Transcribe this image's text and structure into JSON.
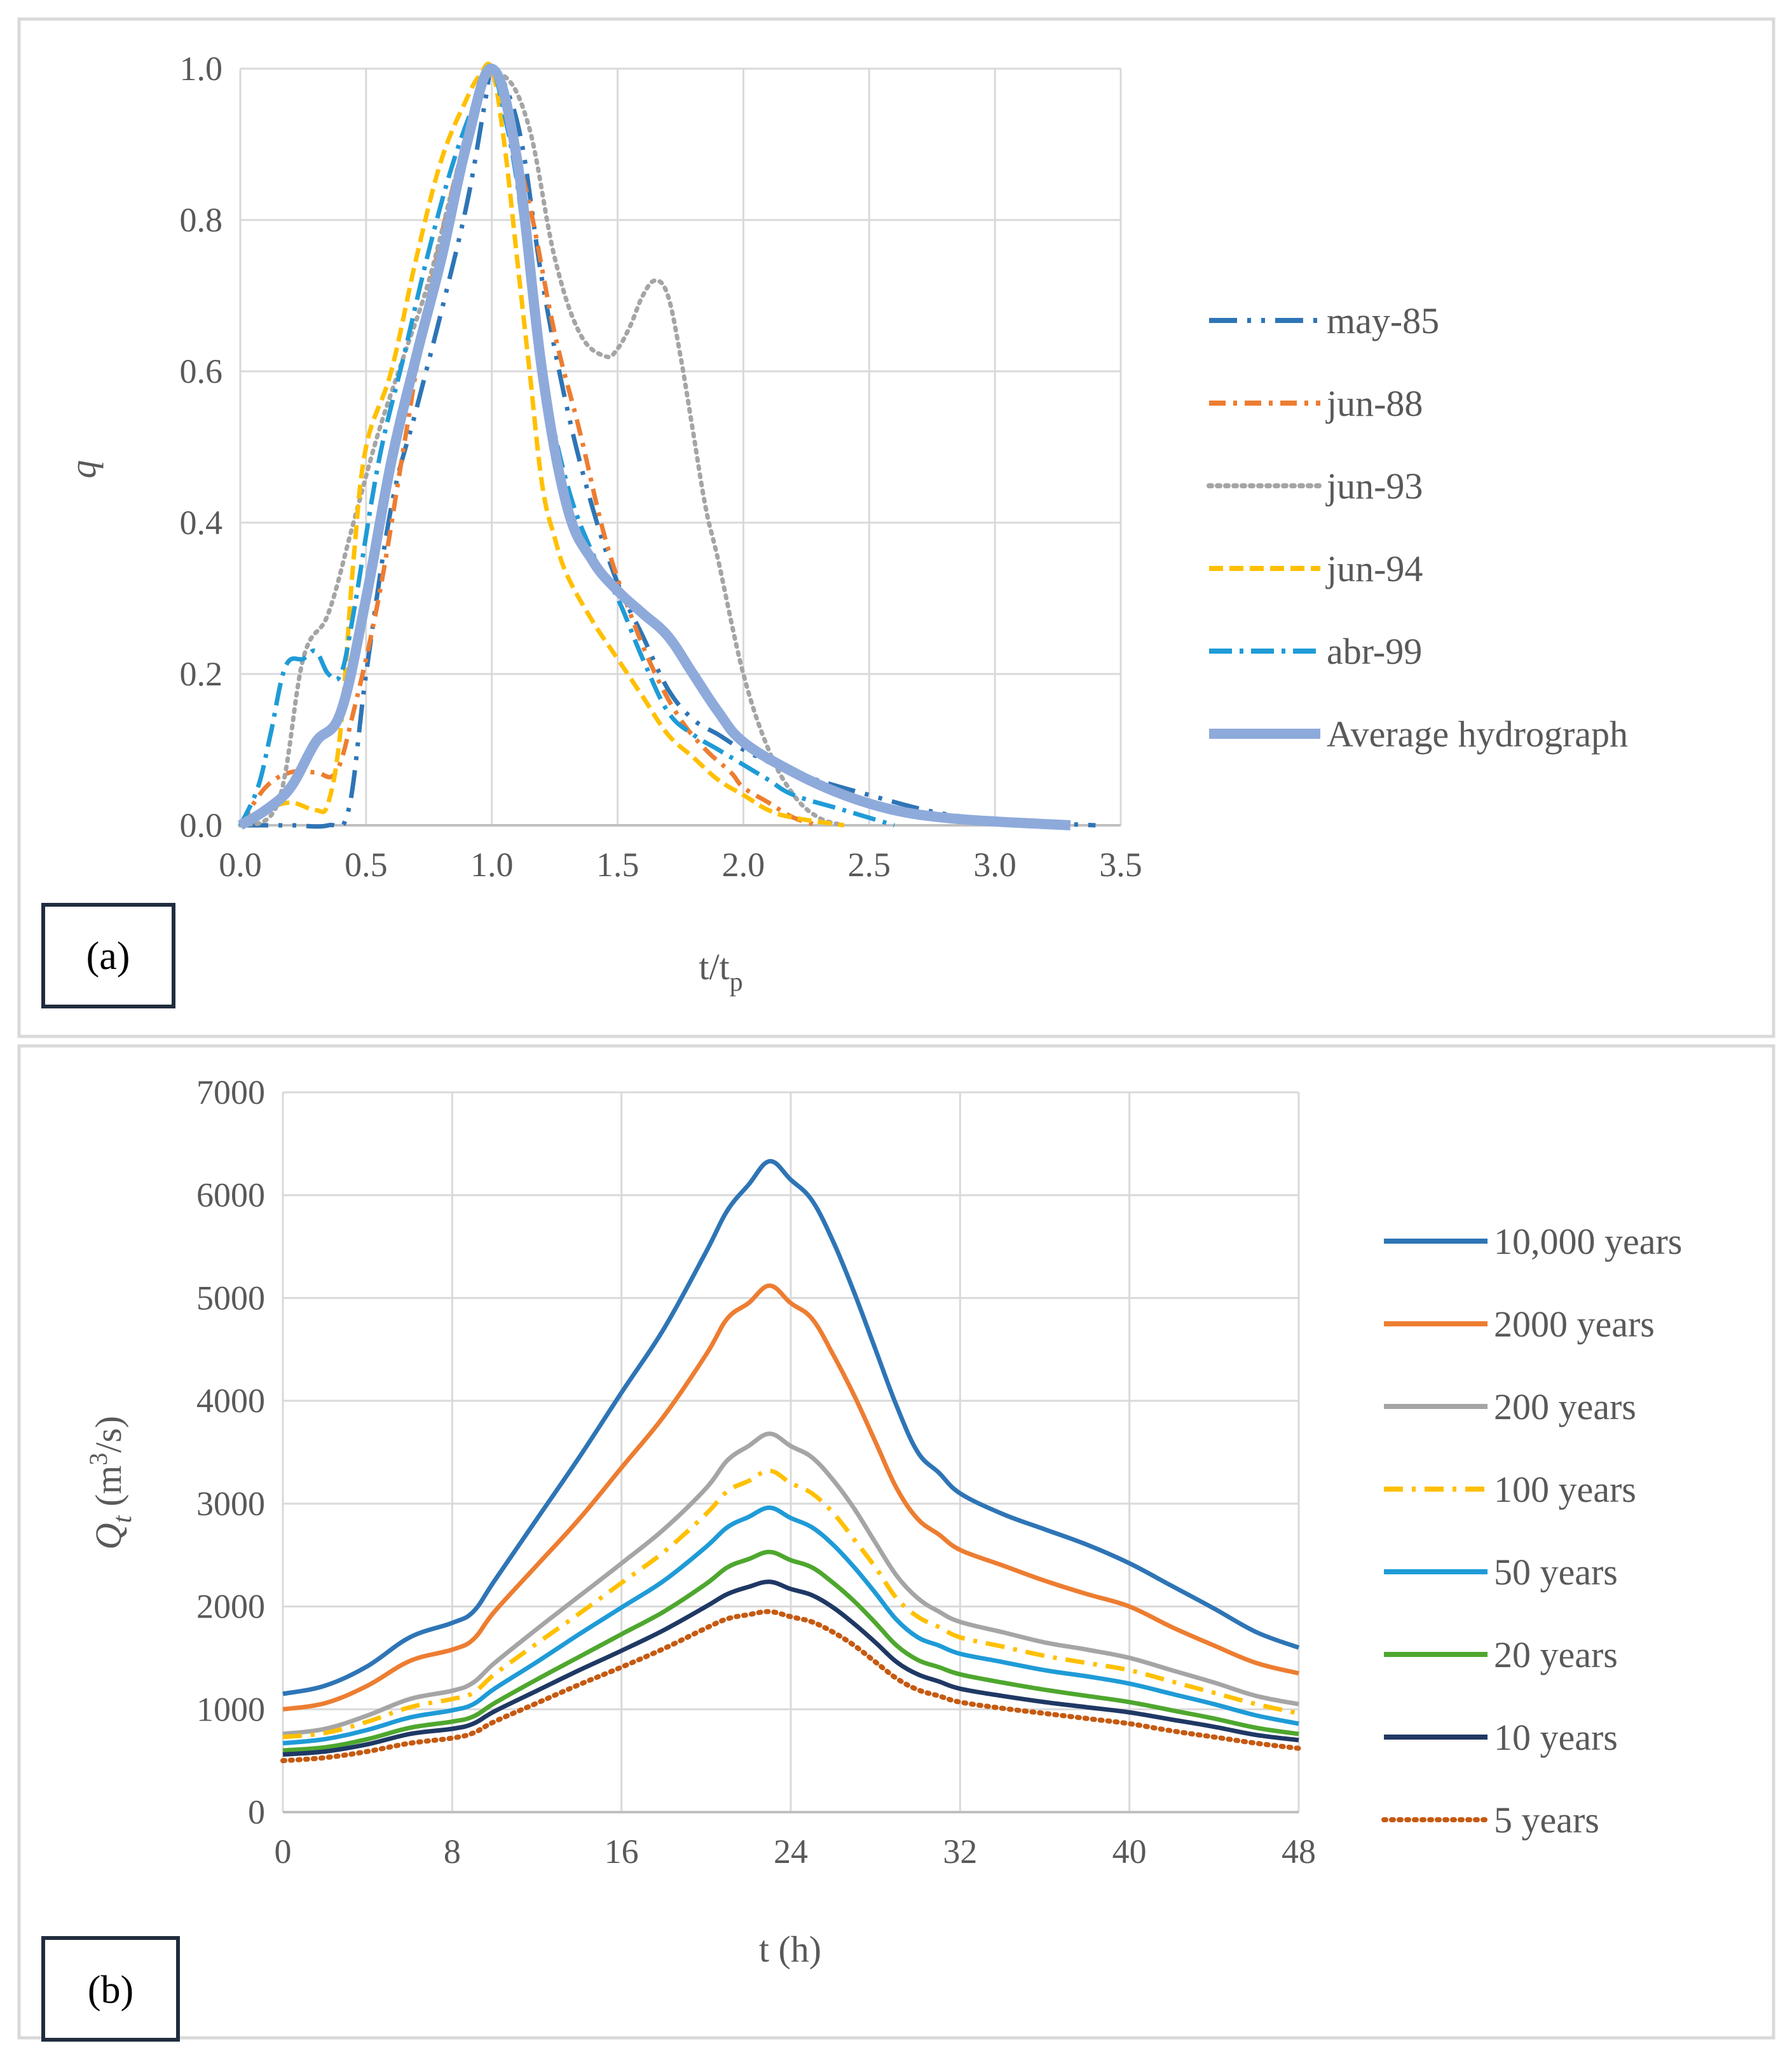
{
  "figure": {
    "panels": [
      "(a)",
      "(b)"
    ]
  },
  "chart_data": [
    {
      "type": "line",
      "panel_label": "(a)",
      "xlabel": "t/t",
      "xlabel_sub": "p",
      "ylabel": "q",
      "xlim": [
        0,
        3.5
      ],
      "ylim": [
        0,
        1
      ],
      "xticks": [
        "0.0",
        "0.5",
        "1.0",
        "1.5",
        "2.0",
        "2.5",
        "3.0",
        "3.5"
      ],
      "yticks": [
        "0.0",
        "0.2",
        "0.4",
        "0.6",
        "0.8",
        "1.0"
      ],
      "grid": true,
      "legend_position": "right",
      "series": [
        {
          "name": "may-85",
          "color": "#2E75B6",
          "dash": "44,16,6,16,6,16",
          "width": 7,
          "x": [
            0,
            0.2,
            0.35,
            0.43,
            0.5,
            0.6,
            0.7,
            0.8,
            0.9,
            0.97,
            1.0,
            1.05,
            1.12,
            1.2,
            1.3,
            1.4,
            1.5,
            1.6,
            1.7,
            1.8,
            1.9,
            2.0,
            2.2,
            2.5,
            2.8,
            3.1,
            3.4
          ],
          "y": [
            0,
            0,
            0,
            0.02,
            0.2,
            0.42,
            0.55,
            0.68,
            0.82,
            0.95,
            1.0,
            0.98,
            0.9,
            0.72,
            0.55,
            0.42,
            0.32,
            0.25,
            0.18,
            0.14,
            0.12,
            0.1,
            0.07,
            0.04,
            0.015,
            0.005,
            0
          ]
        },
        {
          "name": "jun-88",
          "color": "#ED7D31",
          "dash": "26,12,6,12",
          "width": 7,
          "x": [
            0,
            0.1,
            0.2,
            0.3,
            0.38,
            0.45,
            0.55,
            0.65,
            0.75,
            0.85,
            0.95,
            1.0,
            1.05,
            1.15,
            1.25,
            1.35,
            1.45,
            1.55,
            1.65,
            1.75,
            1.85,
            1.95,
            2.0,
            2.1,
            2.2,
            2.3
          ],
          "y": [
            0,
            0.05,
            0.07,
            0.07,
            0.07,
            0.15,
            0.3,
            0.5,
            0.7,
            0.85,
            0.97,
            1.0,
            0.95,
            0.82,
            0.65,
            0.52,
            0.38,
            0.28,
            0.2,
            0.14,
            0.1,
            0.07,
            0.05,
            0.03,
            0.01,
            0
          ]
        },
        {
          "name": "jun-93",
          "color": "#A5A5A5",
          "dash": "4,9",
          "width": 7,
          "x": [
            0,
            0.15,
            0.25,
            0.35,
            0.45,
            0.55,
            0.65,
            0.75,
            0.85,
            0.95,
            1.05,
            1.15,
            1.25,
            1.35,
            1.45,
            1.5,
            1.55,
            1.6,
            1.65,
            1.7,
            1.75,
            1.8,
            1.85,
            1.9,
            2.0,
            2.1,
            2.2,
            2.3,
            2.4
          ],
          "y": [
            0,
            0.03,
            0.22,
            0.28,
            0.4,
            0.52,
            0.62,
            0.72,
            0.85,
            0.97,
            0.99,
            0.92,
            0.75,
            0.65,
            0.62,
            0.63,
            0.66,
            0.7,
            0.72,
            0.7,
            0.62,
            0.52,
            0.42,
            0.35,
            0.2,
            0.1,
            0.04,
            0.01,
            0
          ]
        },
        {
          "name": "jun-94",
          "color": "#FFC000",
          "dash": "22,10",
          "width": 7,
          "x": [
            0,
            0.1,
            0.2,
            0.3,
            0.35,
            0.4,
            0.45,
            0.5,
            0.6,
            0.7,
            0.8,
            0.9,
            0.95,
            1.0,
            1.05,
            1.1,
            1.15,
            1.2,
            1.25,
            1.3,
            1.4,
            1.5,
            1.6,
            1.7,
            1.8,
            1.9,
            2.0,
            2.1,
            2.2,
            2.4
          ],
          "y": [
            0,
            0.02,
            0.03,
            0.02,
            0.03,
            0.13,
            0.35,
            0.5,
            0.6,
            0.75,
            0.88,
            0.96,
            0.99,
            1.0,
            0.9,
            0.75,
            0.6,
            0.45,
            0.38,
            0.33,
            0.27,
            0.22,
            0.17,
            0.12,
            0.09,
            0.06,
            0.04,
            0.02,
            0.01,
            0
          ]
        },
        {
          "name": "abr-99",
          "color": "#1F9BD7",
          "dash": "36,12,6,12",
          "width": 7,
          "x": [
            0,
            0.07,
            0.12,
            0.18,
            0.25,
            0.3,
            0.35,
            0.4,
            0.45,
            0.55,
            0.65,
            0.75,
            0.85,
            0.95,
            1.0,
            1.05,
            1.1,
            1.15,
            1.2,
            1.3,
            1.4,
            1.5,
            1.6,
            1.7,
            1.8,
            1.9,
            2.0,
            2.1,
            2.2,
            2.4,
            2.6
          ],
          "y": [
            0,
            0.05,
            0.12,
            0.21,
            0.22,
            0.23,
            0.2,
            0.2,
            0.28,
            0.48,
            0.62,
            0.76,
            0.88,
            0.97,
            1.0,
            0.94,
            0.85,
            0.72,
            0.6,
            0.45,
            0.36,
            0.3,
            0.22,
            0.15,
            0.12,
            0.1,
            0.08,
            0.06,
            0.04,
            0.02,
            0
          ]
        },
        {
          "name": "Average hydrograph",
          "color": "#8EAADB",
          "dash": "",
          "width": 16,
          "x": [
            0,
            0.1,
            0.2,
            0.3,
            0.4,
            0.5,
            0.6,
            0.7,
            0.8,
            0.9,
            1.0,
            1.1,
            1.2,
            1.3,
            1.4,
            1.5,
            1.6,
            1.7,
            1.8,
            1.9,
            2.0,
            2.2,
            2.4,
            2.6,
            2.8,
            3.0,
            3.3
          ],
          "y": [
            0,
            0.02,
            0.05,
            0.11,
            0.15,
            0.3,
            0.48,
            0.62,
            0.75,
            0.9,
            1.0,
            0.88,
            0.6,
            0.42,
            0.35,
            0.31,
            0.28,
            0.25,
            0.2,
            0.15,
            0.11,
            0.07,
            0.04,
            0.02,
            0.01,
            0.005,
            0
          ]
        }
      ]
    },
    {
      "type": "line",
      "panel_label": "(b)",
      "xlabel": "t (h)",
      "ylabel": "Q",
      "ylabel_sub": "t",
      "ylabel_unit_pre": " (m",
      "ylabel_unit_sup": "3",
      "ylabel_unit_post": "/s)",
      "xlim": [
        0,
        48
      ],
      "ylim": [
        0,
        7000
      ],
      "xticks": [
        "0",
        "8",
        "16",
        "24",
        "32",
        "40",
        "48"
      ],
      "yticks": [
        "0",
        "1000",
        "2000",
        "3000",
        "4000",
        "5000",
        "6000",
        "7000"
      ],
      "grid": true,
      "legend_position": "right",
      "x": [
        0,
        2,
        4,
        6,
        8,
        9,
        10,
        12,
        14,
        16,
        18,
        20,
        21,
        22,
        23,
        24,
        25,
        26,
        27,
        28,
        29,
        30,
        31,
        32,
        34,
        36,
        38,
        40,
        42,
        44,
        46,
        48
      ],
      "series": [
        {
          "name": "10,000 years",
          "color": "#2E75B6",
          "dash": "",
          "width": 7,
          "values": [
            1150,
            1230,
            1420,
            1700,
            1840,
            1950,
            2250,
            2850,
            3450,
            4080,
            4700,
            5450,
            5850,
            6100,
            6330,
            6150,
            5950,
            5550,
            5050,
            4500,
            3950,
            3500,
            3300,
            3100,
            2900,
            2750,
            2600,
            2420,
            2200,
            1980,
            1750,
            1600
          ]
        },
        {
          "name": "2000 years",
          "color": "#ED7D31",
          "dash": "",
          "width": 7,
          "values": [
            1000,
            1060,
            1230,
            1470,
            1580,
            1680,
            1950,
            2400,
            2850,
            3350,
            3850,
            4450,
            4800,
            4950,
            5120,
            4950,
            4800,
            4450,
            4050,
            3600,
            3150,
            2850,
            2700,
            2550,
            2400,
            2250,
            2120,
            2000,
            1800,
            1620,
            1450,
            1350
          ]
        },
        {
          "name": "200 years",
          "color": "#A5A5A5",
          "dash": "",
          "width": 7,
          "values": [
            760,
            810,
            940,
            1100,
            1180,
            1260,
            1450,
            1780,
            2100,
            2420,
            2750,
            3150,
            3420,
            3560,
            3680,
            3560,
            3450,
            3230,
            2950,
            2620,
            2300,
            2080,
            1950,
            1850,
            1750,
            1650,
            1580,
            1500,
            1380,
            1260,
            1130,
            1050
          ]
        },
        {
          "name": "100 years",
          "color": "#FFC000",
          "dash": "30,14,6,14",
          "width": 7,
          "values": [
            730,
            770,
            880,
            1020,
            1100,
            1160,
            1340,
            1640,
            1930,
            2230,
            2530,
            2900,
            3120,
            3220,
            3320,
            3200,
            3100,
            2910,
            2650,
            2380,
            2080,
            1900,
            1800,
            1700,
            1610,
            1520,
            1450,
            1380,
            1270,
            1160,
            1050,
            960
          ]
        },
        {
          "name": "50 years",
          "color": "#1F9BD7",
          "dash": "",
          "width": 7,
          "values": [
            670,
            710,
            800,
            920,
            990,
            1050,
            1200,
            1460,
            1730,
            1990,
            2250,
            2580,
            2770,
            2870,
            2960,
            2860,
            2770,
            2600,
            2380,
            2130,
            1870,
            1700,
            1620,
            1540,
            1460,
            1380,
            1320,
            1250,
            1150,
            1050,
            940,
            860
          ]
        },
        {
          "name": "20 years",
          "color": "#4EA72E",
          "dash": "",
          "width": 7,
          "values": [
            600,
            630,
            710,
            820,
            880,
            930,
            1060,
            1290,
            1510,
            1730,
            1950,
            2220,
            2380,
            2460,
            2530,
            2450,
            2380,
            2230,
            2050,
            1840,
            1620,
            1480,
            1410,
            1340,
            1260,
            1190,
            1130,
            1070,
            990,
            910,
            820,
            760
          ]
        },
        {
          "name": "10 years",
          "color": "#1F3864",
          "dash": "",
          "width": 7,
          "values": [
            560,
            590,
            660,
            760,
            810,
            860,
            980,
            1180,
            1380,
            1570,
            1770,
            2000,
            2120,
            2190,
            2240,
            2170,
            2110,
            1990,
            1830,
            1650,
            1460,
            1340,
            1270,
            1200,
            1130,
            1070,
            1020,
            970,
            900,
            830,
            750,
            700
          ]
        },
        {
          "name": "5 years",
          "color": "#C55A11",
          "dash": "3,9",
          "width": 8,
          "values": [
            500,
            530,
            590,
            670,
            720,
            770,
            880,
            1060,
            1240,
            1410,
            1590,
            1790,
            1880,
            1920,
            1950,
            1900,
            1850,
            1750,
            1620,
            1460,
            1300,
            1190,
            1130,
            1070,
            1010,
            960,
            910,
            860,
            790,
            730,
            670,
            620
          ]
        }
      ]
    }
  ]
}
